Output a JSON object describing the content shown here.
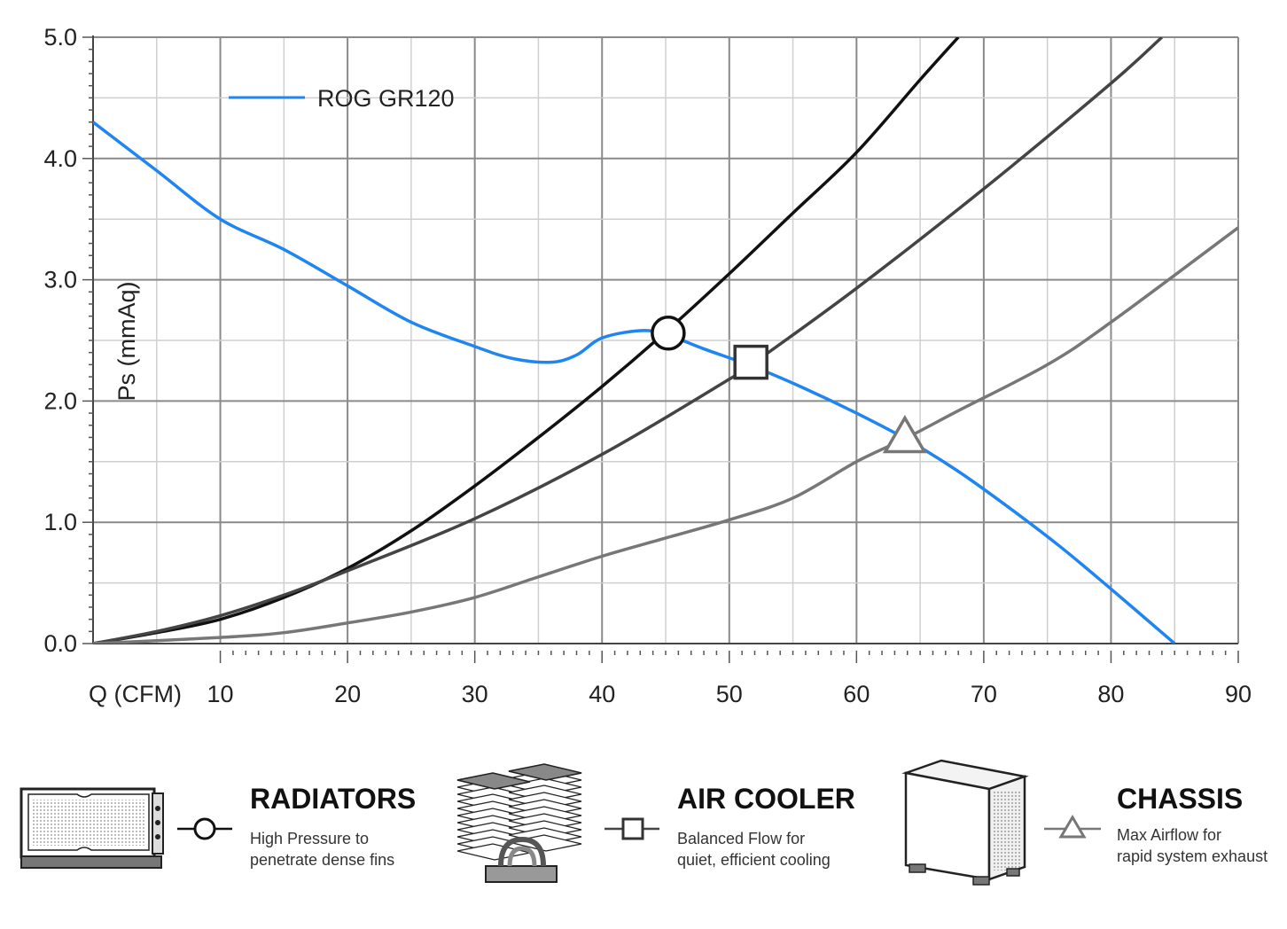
{
  "chart_data": {
    "type": "line",
    "xlabel": "Q (CFM)",
    "ylabel": "Ps (mmAq)",
    "xlim": [
      0,
      90
    ],
    "ylim": [
      0,
      5
    ],
    "x_ticks": [
      "10",
      "20",
      "30",
      "40",
      "50",
      "60",
      "70",
      "80",
      "90"
    ],
    "y_ticks": [
      "0.0",
      "1.0",
      "2.0",
      "3.0",
      "4.0",
      "5.0"
    ],
    "grid": true,
    "legend_position": "top-left",
    "fan_curve": {
      "name": "ROG GR120",
      "color": "#1f85f0",
      "x": [
        0,
        5,
        10,
        15,
        20,
        25,
        30,
        33,
        36,
        38,
        40,
        43,
        45,
        48,
        52,
        56,
        60,
        64,
        68,
        72,
        76,
        80,
        85
      ],
      "y": [
        4.3,
        3.9,
        3.5,
        3.25,
        2.95,
        2.65,
        2.45,
        2.35,
        2.32,
        2.38,
        2.52,
        2.58,
        2.55,
        2.43,
        2.28,
        2.1,
        1.9,
        1.68,
        1.42,
        1.12,
        0.8,
        0.45,
        0.0
      ]
    },
    "impedance_curves": [
      {
        "color": "#111111",
        "x": [
          0,
          5,
          10,
          15,
          20,
          25,
          30,
          35,
          40,
          45,
          50,
          55,
          60,
          65,
          68
        ],
        "y": [
          0.0,
          0.09,
          0.2,
          0.38,
          0.62,
          0.93,
          1.3,
          1.7,
          2.12,
          2.57,
          3.05,
          3.55,
          4.05,
          4.65,
          5.0
        ]
      },
      {
        "color": "#444444",
        "x": [
          0,
          5,
          10,
          15,
          20,
          30,
          40,
          50,
          52,
          60,
          70,
          80,
          84
        ],
        "y": [
          0.0,
          0.1,
          0.23,
          0.4,
          0.6,
          1.03,
          1.56,
          2.18,
          2.32,
          2.93,
          3.75,
          4.62,
          5.0
        ]
      },
      {
        "color": "#777777",
        "x": [
          0,
          10,
          15,
          20,
          25,
          30,
          35,
          40,
          45,
          50,
          55,
          60,
          64,
          68,
          75,
          80,
          90
        ],
        "y": [
          0.0,
          0.05,
          0.09,
          0.17,
          0.26,
          0.38,
          0.55,
          0.72,
          0.87,
          1.02,
          1.2,
          1.5,
          1.7,
          1.92,
          2.3,
          2.65,
          3.43
        ]
      }
    ],
    "operating_points": [
      {
        "x": 45.2,
        "y": 2.56,
        "marker": "circle"
      },
      {
        "x": 51.7,
        "y": 2.32,
        "marker": "square"
      },
      {
        "x": 63.8,
        "y": 1.7,
        "marker": "triangle"
      }
    ]
  },
  "legend_items": [
    {
      "title": "RADIATORS",
      "desc_line1": "High Pressure to",
      "desc_line2": "penetrate dense fins",
      "marker": "circle",
      "icon": "radiator-icon"
    },
    {
      "title": "AIR COOLER",
      "desc_line1": "Balanced Flow for",
      "desc_line2": "quiet, efficient cooling",
      "marker": "square",
      "icon": "air-cooler-icon"
    },
    {
      "title": "CHASSIS",
      "desc_line1": "Max Airflow for",
      "desc_line2": "rapid system exhaust",
      "marker": "triangle",
      "icon": "chassis-icon"
    }
  ]
}
